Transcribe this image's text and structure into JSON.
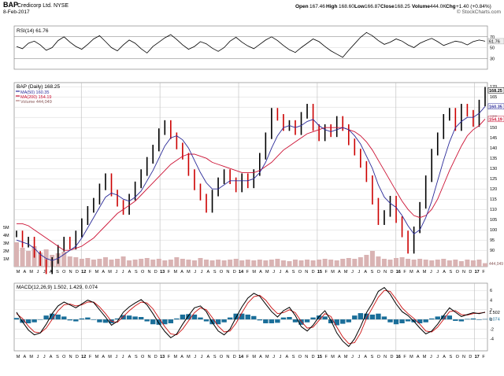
{
  "header": {
    "symbol": "BAP",
    "company": "Credicorp Ltd.",
    "exchange": "NYSE",
    "date": "8-Feb-2017",
    "quote": {
      "open_label": "Open",
      "open": "167.46",
      "high_label": "High",
      "high": "168.60",
      "low_label": "Low",
      "low": "166.87",
      "close_label": "Close",
      "close": "168.25",
      "volume_label": "Volume",
      "volume": "444.0K",
      "chg_label": "Chg",
      "chg": "+1.40 (+0.84%)"
    },
    "watermark": "© StockCharts.com"
  },
  "colors": {
    "price_up": "#000000",
    "price_down": "#cc0000",
    "ma50": "#2b2b99",
    "ma200": "#cc1133",
    "volume": "#d9b3b3",
    "macd": "#000000",
    "signal": "#cc1111",
    "histogram": "#1a6e99",
    "grid": "#d6d6d6"
  },
  "chart_data": [
    {
      "type": "line",
      "panel": "rsi",
      "title": "RSI(14) 61.76",
      "series": [
        {
          "name": "RSI(14)",
          "values": [
            52,
            48,
            58,
            62,
            55,
            45,
            50,
            63,
            70,
            60,
            52,
            47,
            56,
            66,
            72,
            61,
            50,
            44,
            55,
            64,
            58,
            48,
            40,
            52,
            60,
            68,
            74,
            65,
            55,
            47,
            52,
            61,
            57,
            49,
            43,
            50,
            62,
            69,
            60,
            53,
            48,
            56,
            64,
            70,
            63,
            54,
            46,
            41,
            50,
            58,
            66,
            61,
            52,
            44,
            38,
            32,
            45,
            57,
            69,
            78,
            72,
            63,
            56,
            60,
            66,
            62,
            55,
            50,
            58,
            63,
            67,
            61,
            54,
            58,
            62,
            60,
            55,
            61,
            64,
            61.76
          ]
        }
      ],
      "ylim": [
        10,
        90
      ],
      "ticks": [
        30,
        50,
        70
      ],
      "value_label": "61.76",
      "reference_lines": [
        30,
        70
      ]
    },
    {
      "type": "line",
      "panel": "price",
      "title": "BAP (Daily) 168.25",
      "legend": [
        {
          "name": "MA(50) 160.35",
          "color_key": "ma50"
        },
        {
          "name": "MA(200) 154.19",
          "color_key": "ma200"
        },
        {
          "name": "Volume 444,049",
          "color_key": "volume"
        }
      ],
      "series": [
        {
          "name": "BAP (Daily)",
          "values": [
            98,
            93,
            95,
            88,
            84,
            80,
            85,
            91,
            95,
            92,
            98,
            104,
            110,
            114,
            121,
            126,
            118,
            113,
            109,
            116,
            122,
            128,
            134,
            140,
            148,
            152,
            146,
            141,
            136,
            128,
            121,
            116,
            110,
            118,
            124,
            128,
            124,
            120,
            126,
            122,
            128,
            136,
            146,
            158,
            155,
            150,
            152,
            148,
            156,
            160,
            150,
            145,
            150,
            147,
            154,
            150,
            143,
            138,
            132,
            125,
            114,
            104,
            108,
            115,
            105,
            98,
            90,
            100,
            112,
            125,
            138,
            146,
            155,
            158,
            150,
            160,
            157,
            152,
            162,
            168.25
          ]
        },
        {
          "name": "MA(50)",
          "values": [
            95,
            94,
            93,
            91,
            88,
            86,
            85,
            86,
            88,
            90,
            92,
            96,
            101,
            106,
            111,
            116,
            118,
            117,
            115,
            114,
            116,
            119,
            124,
            129,
            135,
            141,
            145,
            146,
            144,
            140,
            134,
            128,
            123,
            120,
            120,
            122,
            124,
            124,
            124,
            124,
            125,
            128,
            133,
            140,
            146,
            150,
            151,
            150,
            151,
            153,
            154,
            151,
            149,
            148,
            149,
            150,
            149,
            146,
            142,
            136,
            130,
            122,
            116,
            113,
            111,
            107,
            102,
            98,
            100,
            106,
            114,
            124,
            134,
            143,
            150,
            153,
            155,
            155,
            157,
            160.35
          ]
        },
        {
          "name": "MA(200)",
          "values": [
            103,
            103,
            102,
            100,
            98,
            96,
            94,
            92,
            90,
            90,
            91,
            92,
            94,
            96,
            99,
            102,
            105,
            108,
            110,
            112,
            114,
            117,
            120,
            123,
            126,
            129,
            132,
            134,
            136,
            137,
            137,
            136,
            135,
            133,
            132,
            131,
            130,
            129,
            128,
            128,
            128,
            129,
            131,
            133,
            136,
            139,
            141,
            143,
            145,
            147,
            148,
            149,
            150,
            150,
            150,
            150,
            149,
            148,
            146,
            143,
            139,
            134,
            129,
            124,
            119,
            114,
            110,
            107,
            106,
            107,
            110,
            115,
            122,
            129,
            135,
            141,
            146,
            149,
            151,
            154.19
          ]
        }
      ],
      "volume": [
        3.1,
        2.4,
        2.0,
        2.6,
        1.8,
        2.2,
        1.5,
        1.7,
        1.9,
        1.3,
        1.2,
        1.0,
        1.1,
        0.9,
        1.0,
        1.2,
        0.9,
        1.0,
        1.3,
        0.8,
        0.9,
        1.0,
        1.1,
        0.9,
        1.0,
        0.8,
        0.9,
        1.2,
        1.0,
        0.9,
        0.8,
        1.1,
        0.9,
        0.8,
        0.9,
        0.8,
        0.9,
        1.0,
        0.8,
        0.9,
        0.8,
        0.9,
        0.8,
        0.9,
        1.0,
        0.8,
        0.7,
        0.9,
        0.8,
        0.9,
        0.8,
        0.9,
        1.0,
        0.9,
        0.8,
        1.0,
        1.1,
        1.0,
        1.2,
        1.5,
        2.0,
        1.3,
        1.0,
        0.9,
        1.1,
        1.2,
        1.0,
        0.9,
        1.0,
        0.9,
        0.8,
        0.9,
        1.0,
        0.8,
        0.9,
        0.7,
        0.9,
        0.8,
        0.9,
        0.444
      ],
      "ylim": [
        82,
        172
      ],
      "ticks": [
        90,
        95,
        100,
        105,
        110,
        115,
        120,
        125,
        130,
        135,
        140,
        145,
        150,
        155,
        160,
        165,
        170
      ],
      "volume_ticks": [
        "1M",
        "2M",
        "3M",
        "4M",
        "5M"
      ],
      "value_labels": [
        {
          "text": "168.25",
          "value": 168.25,
          "color_key": "price_up"
        },
        {
          "text": "160.35",
          "value": 160.35,
          "color_key": "ma50"
        },
        {
          "text": "154.19",
          "value": 154.19,
          "color_key": "ma200"
        }
      ],
      "volume_value_label": "444,049"
    },
    {
      "type": "line",
      "panel": "macd",
      "title": "MACD(12,26,9) 1.502, 1.429, 0.074",
      "series": [
        {
          "name": "MACD",
          "values": [
            1.5,
            -0.5,
            -2.2,
            -3.2,
            -2.8,
            -1.0,
            1.2,
            2.8,
            3.6,
            3.0,
            2.4,
            3.2,
            4.0,
            3.5,
            2.0,
            0.5,
            -1.2,
            -0.4,
            1.5,
            2.6,
            3.4,
            4.1,
            3.0,
            1.2,
            -0.8,
            -2.5,
            -3.8,
            -3.0,
            -1.0,
            0.8,
            2.4,
            2.8,
            1.6,
            -0.6,
            -2.4,
            -3.2,
            -2.0,
            0.4,
            2.6,
            4.4,
            5.4,
            4.8,
            3.2,
            1.6,
            0.5,
            1.8,
            2.5,
            0.8,
            -1.5,
            -2.4,
            -1.2,
            0.6,
            1.8,
            -0.2,
            -2.8,
            -4.5,
            -5.6,
            -4.0,
            -1.5,
            1.4,
            3.4,
            5.8,
            6.6,
            5.2,
            3.2,
            1.6,
            0.8,
            -0.4,
            -1.8,
            -3.0,
            -2.4,
            -1.0,
            0.8,
            2.4,
            1.5,
            0.6,
            1.0,
            1.4,
            1.2,
            1.502
          ]
        },
        {
          "name": "Signal",
          "values": [
            1.2,
            0.2,
            -1.4,
            -2.6,
            -2.8,
            -1.8,
            0.0,
            1.8,
            3.0,
            3.2,
            2.8,
            3.0,
            3.6,
            3.6,
            2.6,
            1.2,
            -0.4,
            -0.6,
            0.6,
            1.8,
            2.8,
            3.6,
            3.4,
            2.2,
            0.3,
            -1.5,
            -3.0,
            -3.2,
            -2.0,
            -0.3,
            1.4,
            2.4,
            2.0,
            0.4,
            -1.4,
            -2.6,
            -2.4,
            -0.8,
            1.4,
            3.4,
            4.7,
            5.0,
            4.0,
            2.4,
            1.2,
            1.4,
            2.0,
            1.4,
            -0.4,
            -1.8,
            -1.6,
            -0.2,
            1.2,
            0.6,
            -1.6,
            -3.6,
            -5.0,
            -4.8,
            -2.8,
            0.2,
            2.4,
            4.6,
            6.0,
            5.8,
            4.2,
            2.4,
            1.2,
            0.2,
            -1.0,
            -2.4,
            -2.6,
            -1.6,
            0.0,
            1.6,
            1.8,
            1.0,
            0.9,
            1.2,
            1.3,
            1.429
          ]
        },
        {
          "name": "Histogram",
          "values": [
            0.3,
            -0.7,
            -0.8,
            -0.6,
            0.0,
            0.8,
            1.2,
            1.0,
            0.6,
            -0.2,
            -0.4,
            0.2,
            0.4,
            -0.1,
            -0.6,
            -0.7,
            -0.8,
            0.2,
            0.9,
            0.8,
            0.6,
            0.5,
            -0.4,
            -1.0,
            -1.1,
            -1.0,
            -0.8,
            0.2,
            1.0,
            1.1,
            1.0,
            0.4,
            -0.4,
            -1.0,
            -1.0,
            -0.6,
            0.4,
            1.2,
            1.2,
            1.0,
            0.7,
            -0.2,
            -0.8,
            -0.8,
            -0.7,
            0.4,
            0.5,
            -0.6,
            -1.1,
            -0.6,
            0.4,
            0.8,
            0.6,
            -0.8,
            -1.2,
            -0.9,
            -0.6,
            0.8,
            1.3,
            1.2,
            1.0,
            1.2,
            0.6,
            -0.6,
            -1.0,
            -0.8,
            -0.4,
            -0.6,
            -0.8,
            -0.6,
            0.2,
            0.6,
            0.8,
            0.8,
            -0.3,
            -0.4,
            0.1,
            0.2,
            -0.1,
            0.074
          ]
        }
      ],
      "ylim": [
        -6.5,
        7.5
      ],
      "ticks": [
        -4,
        -2,
        0,
        2,
        4,
        6
      ],
      "value_labels": [
        {
          "text": "1.502",
          "value": 1.502
        },
        {
          "text": "0.074",
          "value": 0.074
        }
      ]
    }
  ],
  "x_axis": {
    "labels": [
      "M",
      "A",
      "M",
      "J",
      "J",
      "A",
      "S",
      "O",
      "N",
      "D",
      "12",
      "F",
      "M",
      "A",
      "M",
      "J",
      "J",
      "A",
      "S",
      "O",
      "N",
      "D",
      "13",
      "F",
      "M",
      "A",
      "M",
      "J",
      "J",
      "A",
      "S",
      "O",
      "N",
      "D",
      "14",
      "F",
      "M",
      "A",
      "M",
      "J",
      "J",
      "A",
      "S",
      "O",
      "N",
      "D",
      "15",
      "F",
      "M",
      "A",
      "M",
      "J",
      "J",
      "A",
      "S",
      "O",
      "N",
      "D",
      "16",
      "F",
      "M",
      "A",
      "M",
      "J",
      "J",
      "A",
      "S",
      "O",
      "N",
      "D",
      "17",
      "F"
    ],
    "year_labels": [
      "12",
      "13",
      "14",
      "15",
      "16",
      "17"
    ]
  }
}
